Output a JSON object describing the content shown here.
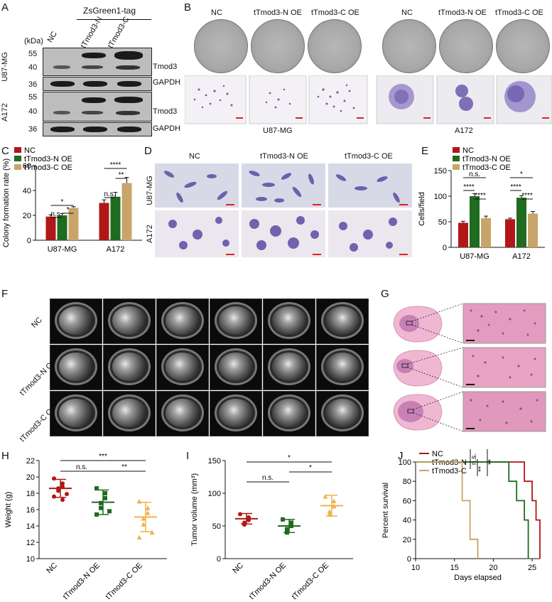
{
  "panels": {
    "A": "A",
    "B": "B",
    "C": "C",
    "D": "D",
    "E": "E",
    "F": "F",
    "G": "G",
    "H": "H",
    "I": "I",
    "J": "J"
  },
  "panelA": {
    "tag": "ZsGreen1-tag",
    "kda": "(kDa)",
    "lanes": [
      "NC",
      "tTmod3-N",
      "tTmod3-C"
    ],
    "cells": [
      "U87-MG",
      "A172"
    ],
    "markers": [
      "55",
      "40",
      "36",
      "55",
      "40",
      "36"
    ],
    "proteins": [
      "Tmod3",
      "GAPDH",
      "Tmod3",
      "GAPDH"
    ]
  },
  "panelB": {
    "groups": [
      "NC",
      "tTmod3-N OE",
      "tTmod3-C OE",
      "NC",
      "tTmod3-N OE",
      "tTmod3-C OE"
    ],
    "cells": [
      "U87-MG",
      "A172"
    ]
  },
  "panelD": {
    "cols": [
      "NC",
      "tTmod3-N OE",
      "tTmod3-C OE"
    ],
    "rows": [
      "U87-MG",
      "A172"
    ]
  },
  "panelF": {
    "rows": [
      "NC",
      "tTmod3-N OE",
      "tTmod3-C OE"
    ]
  },
  "chart_data": [
    {
      "id": "C",
      "type": "bar",
      "ylabel": "Colony formation rate (%)",
      "categories": [
        "U87-MG",
        "A172"
      ],
      "ylim": [
        0,
        60
      ],
      "yticks": [
        0,
        20,
        40,
        60
      ],
      "series": [
        {
          "name": "NC",
          "values": [
            19,
            30
          ],
          "err": [
            1.5,
            2.5
          ],
          "color": "#b01818"
        },
        {
          "name": "tTmod3-N OE",
          "values": [
            20,
            35
          ],
          "err": [
            1.5,
            3.5
          ],
          "color": "#1f6b1f"
        },
        {
          "name": "tTmod3-C OE",
          "values": [
            26,
            46
          ],
          "err": [
            1.0,
            4.5
          ],
          "color": "#c9a46a"
        }
      ],
      "annotations": [
        "*",
        "n.s.",
        "*",
        "n.s.",
        "****",
        "**"
      ]
    },
    {
      "id": "E",
      "type": "bar",
      "ylabel": "Cells/field",
      "categories": [
        "U87-MG",
        "A172"
      ],
      "ylim": [
        0,
        150
      ],
      "yticks": [
        0,
        50,
        100,
        150
      ],
      "series": [
        {
          "name": "NC",
          "values": [
            48,
            55
          ],
          "err": [
            3,
            2
          ],
          "color": "#b01818"
        },
        {
          "name": "tTmod3-N OE",
          "values": [
            100,
            97
          ],
          "err": [
            5,
            4
          ],
          "color": "#1f6b1f"
        },
        {
          "name": "tTmod3-C OE",
          "values": [
            57,
            66
          ],
          "err": [
            4,
            4
          ],
          "color": "#c9a46a"
        }
      ],
      "annotations": [
        "n.s.",
        "****",
        "****",
        "*",
        "****",
        "****"
      ]
    },
    {
      "id": "H",
      "type": "scatter",
      "ylabel": "Weight (g)",
      "categories": [
        "NC",
        "tTmod3-N OE",
        "tTmod3-C OE"
      ],
      "ylim": [
        10,
        22
      ],
      "yticks": [
        10,
        12,
        14,
        16,
        18,
        20,
        22
      ],
      "series": [
        {
          "name": "NC",
          "points": [
            19.8,
            19.2,
            18.8,
            18.6,
            18.3,
            17.9,
            17.6,
            17.2
          ],
          "mean": 18.6,
          "sd": 1.1,
          "color": "#b01818",
          "marker": "circle"
        },
        {
          "name": "tTmod3-N OE",
          "points": [
            18.6,
            18.0,
            17.4,
            16.8,
            16.2,
            15.8,
            15.4
          ],
          "mean": 16.9,
          "sd": 1.5,
          "color": "#1f6b1f",
          "marker": "square"
        },
        {
          "name": "tTmod3-C OE",
          "points": [
            17.0,
            16.2,
            15.6,
            14.9,
            14.2,
            13.2,
            12.6
          ],
          "mean": 15.1,
          "sd": 1.8,
          "color": "#f0b14d",
          "marker": "triangle"
        }
      ],
      "annotations": [
        "***",
        "n.s.",
        "**"
      ]
    },
    {
      "id": "I",
      "type": "scatter",
      "ylabel": "Tumor volume (mm³)",
      "categories": [
        "NC",
        "tTmod3-N OE",
        "tTmod3-C OE"
      ],
      "ylim": [
        0,
        150
      ],
      "yticks": [
        0,
        50,
        100,
        150
      ],
      "series": [
        {
          "name": "NC",
          "points": [
            68,
            63,
            59,
            55,
            52
          ],
          "mean": 61,
          "sd": 8,
          "color": "#b01818",
          "marker": "circle"
        },
        {
          "name": "tTmod3-N OE",
          "points": [
            60,
            55,
            50,
            45,
            40
          ],
          "mean": 50,
          "sd": 10,
          "color": "#1f6b1f",
          "marker": "square"
        },
        {
          "name": "tTmod3-C OE",
          "points": [
            95,
            88,
            80,
            72,
            68
          ],
          "mean": 81,
          "sd": 16,
          "color": "#f0b14d",
          "marker": "triangle"
        }
      ],
      "annotations": [
        "*",
        "n.s.",
        "*"
      ]
    },
    {
      "id": "J",
      "type": "line",
      "ylabel": "Percent survival",
      "xlabel": "Days elapsed",
      "xlim": [
        10,
        26
      ],
      "xticks": [
        10,
        15,
        20,
        25
      ],
      "ylim": [
        0,
        100
      ],
      "yticks": [
        0,
        20,
        40,
        60,
        80,
        100
      ],
      "series": [
        {
          "name": "NC",
          "color": "#b01818",
          "steps": [
            [
              10,
              100
            ],
            [
              24,
              100
            ],
            [
              24,
              80
            ],
            [
              25,
              80
            ],
            [
              25,
              60
            ],
            [
              25.5,
              60
            ],
            [
              25.5,
              40
            ],
            [
              26,
              40
            ],
            [
              26,
              0
            ]
          ]
        },
        {
          "name": "tTmod3-N",
          "color": "#1f6b1f",
          "steps": [
            [
              10,
              100
            ],
            [
              22,
              100
            ],
            [
              22,
              80
            ],
            [
              23,
              80
            ],
            [
              23,
              60
            ],
            [
              24,
              60
            ],
            [
              24,
              40
            ],
            [
              24.5,
              40
            ],
            [
              24.5,
              0
            ]
          ]
        },
        {
          "name": "tTmod3-C",
          "color": "#c9a46a",
          "steps": [
            [
              10,
              100
            ],
            [
              16,
              100
            ],
            [
              16,
              60
            ],
            [
              17,
              60
            ],
            [
              17,
              20
            ],
            [
              18,
              20
            ],
            [
              18,
              0
            ]
          ]
        }
      ],
      "annotations": [
        "n.s.",
        "**",
        "**"
      ]
    }
  ]
}
